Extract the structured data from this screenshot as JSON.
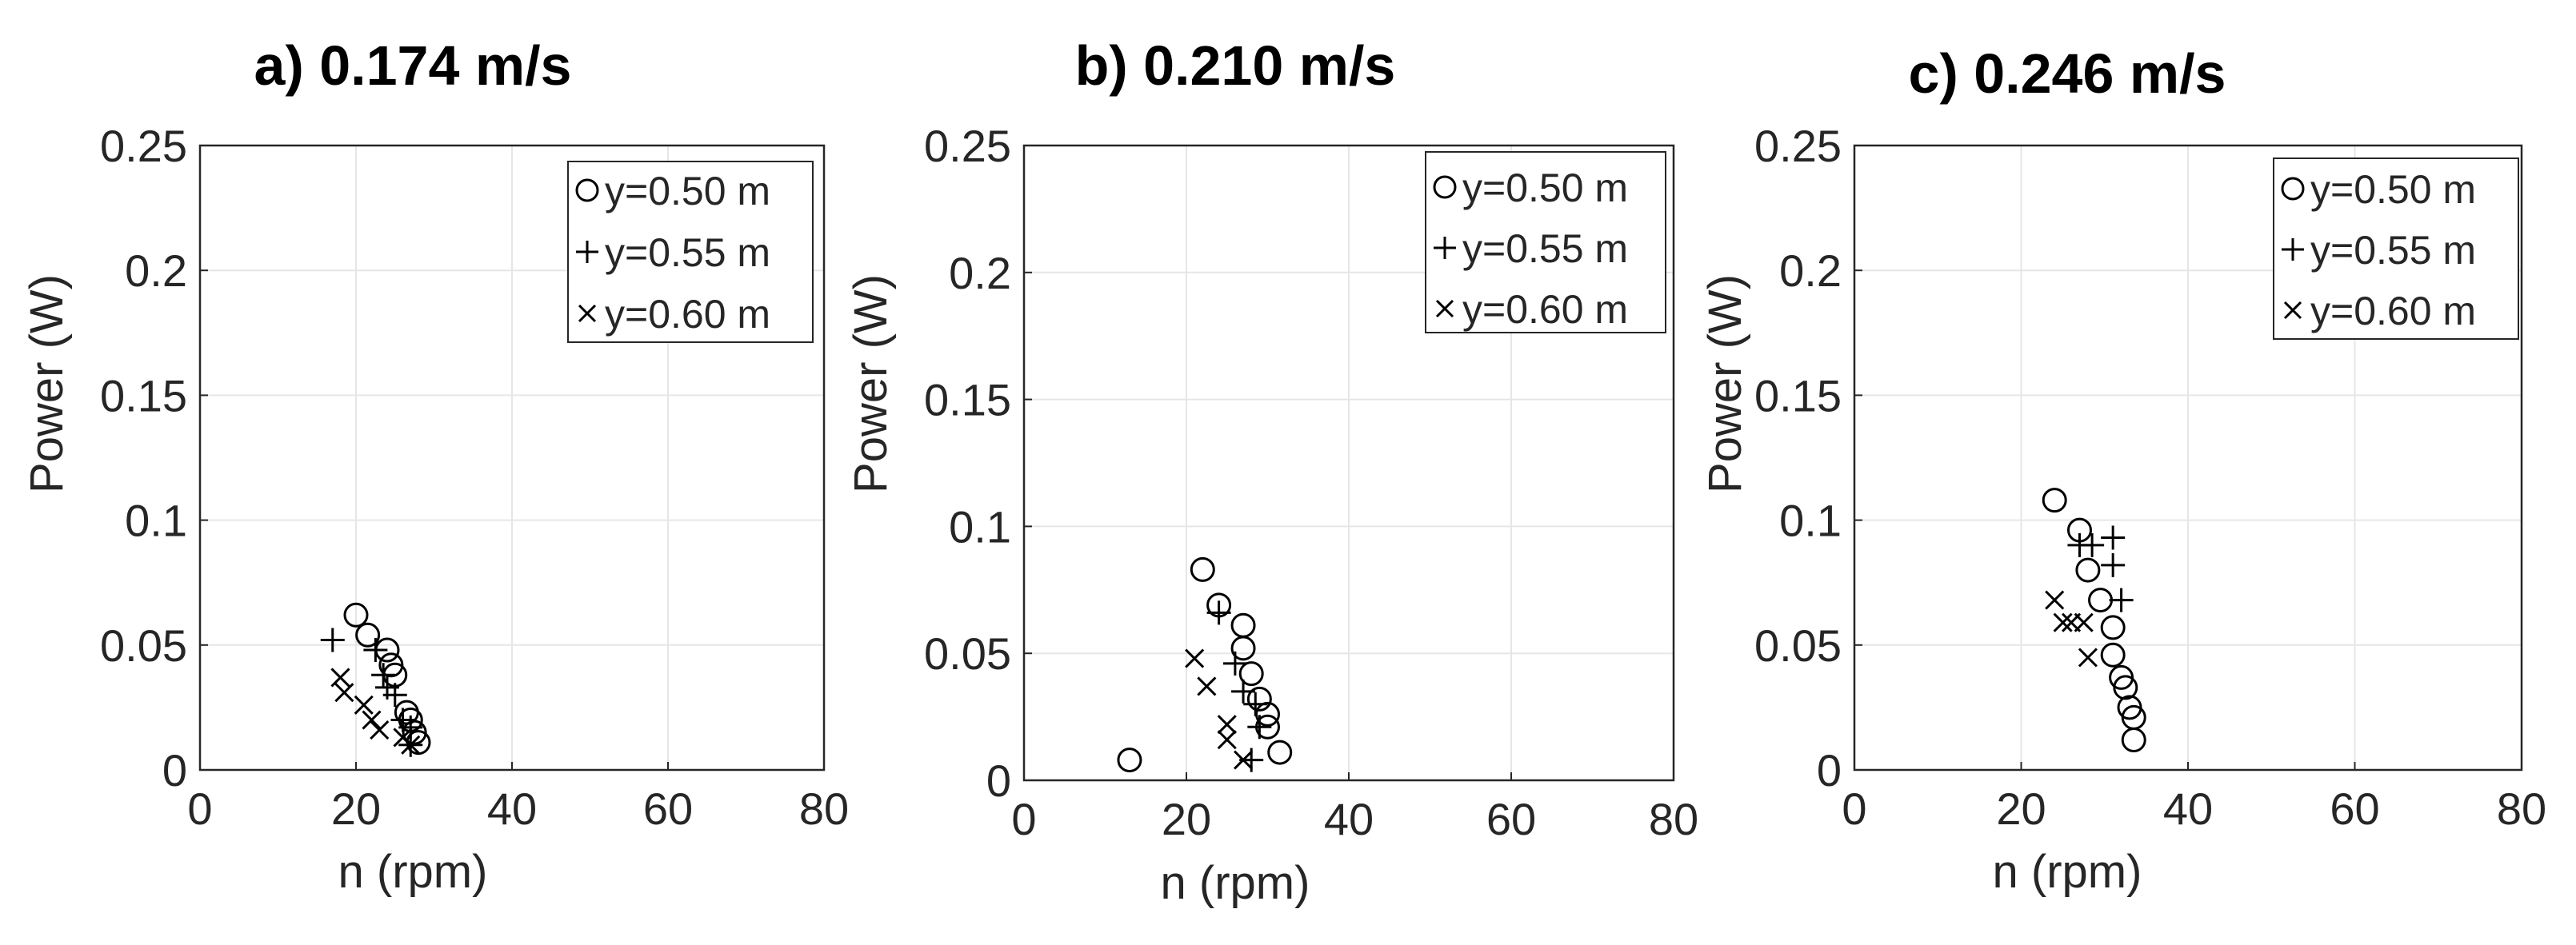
{
  "chart_data": [
    {
      "type": "scatter",
      "title": "a) 0.174 m/s",
      "xlabel": "n (rpm)",
      "ylabel": "Power (W)",
      "xlim": [
        0,
        80
      ],
      "ylim": [
        0,
        0.25
      ],
      "xticks": [
        0,
        20,
        40,
        60,
        80
      ],
      "yticks": [
        0,
        0.05,
        0.1,
        0.15,
        0.2,
        0.25
      ],
      "ytick_labels": [
        "0",
        "0.05",
        "0.1",
        "0.15",
        "0.2",
        "0.25"
      ],
      "grid": true,
      "legend_position": "top-right",
      "series": [
        {
          "name": "y=0.50 m",
          "marker": "circle",
          "x": [
            20,
            21.5,
            24,
            24.5,
            25,
            26.5,
            27,
            27.5,
            28
          ],
          "y": [
            0.062,
            0.054,
            0.048,
            0.042,
            0.038,
            0.023,
            0.02,
            0.015,
            0.011
          ]
        },
        {
          "name": "y=0.55 m",
          "marker": "plus",
          "x": [
            17,
            22.5,
            23.5,
            24,
            25,
            26,
            27,
            27
          ],
          "y": [
            0.052,
            0.048,
            0.038,
            0.033,
            0.03,
            0.02,
            0.017,
            0.01
          ]
        },
        {
          "name": "y=0.60 m",
          "marker": "x",
          "x": [
            18,
            18.5,
            21,
            22,
            23,
            26,
            27
          ],
          "y": [
            0.037,
            0.031,
            0.026,
            0.02,
            0.016,
            0.013,
            0.01
          ]
        }
      ]
    },
    {
      "type": "scatter",
      "title": "b) 0.210 m/s",
      "xlabel": "n (rpm)",
      "ylabel": "Power (W)",
      "xlim": [
        0,
        80
      ],
      "ylim": [
        0,
        0.25
      ],
      "xticks": [
        0,
        20,
        40,
        60,
        80
      ],
      "yticks": [
        0,
        0.05,
        0.1,
        0.15,
        0.2,
        0.25
      ],
      "ytick_labels": [
        "0",
        "0.05",
        "0.1",
        "0.15",
        "0.2",
        "0.25"
      ],
      "grid": true,
      "legend_position": "top-right",
      "series": [
        {
          "name": "y=0.50 m",
          "marker": "circle",
          "x": [
            13,
            22,
            24,
            27,
            27,
            28,
            29,
            30,
            30,
            31.5
          ],
          "y": [
            0.008,
            0.083,
            0.069,
            0.061,
            0.052,
            0.042,
            0.032,
            0.026,
            0.021,
            0.011
          ]
        },
        {
          "name": "y=0.55 m",
          "marker": "plus",
          "x": [
            24,
            26,
            27,
            28.5,
            29,
            28
          ],
          "y": [
            0.066,
            0.046,
            0.035,
            0.03,
            0.021,
            0.008
          ]
        },
        {
          "name": "y=0.60 m",
          "marker": "x",
          "x": [
            21,
            22.5,
            25,
            25,
            27
          ],
          "y": [
            0.048,
            0.037,
            0.022,
            0.016,
            0.008
          ]
        }
      ]
    },
    {
      "type": "scatter",
      "title": "c) 0.246 m/s",
      "xlabel": "n (rpm)",
      "ylabel": "Power (W)",
      "xlim": [
        0,
        80
      ],
      "ylim": [
        0,
        0.25
      ],
      "xticks": [
        0,
        20,
        40,
        60,
        80
      ],
      "yticks": [
        0,
        0.05,
        0.1,
        0.15,
        0.2,
        0.25
      ],
      "ytick_labels": [
        "0",
        "0.05",
        "0.1",
        "0.15",
        "0.2",
        "0.25"
      ],
      "grid": true,
      "legend_position": "top-right",
      "series": [
        {
          "name": "y=0.50 m",
          "marker": "circle",
          "x": [
            24,
            27,
            28,
            29.5,
            31,
            31,
            32,
            32.5,
            33,
            33.5,
            33.5
          ],
          "y": [
            0.108,
            0.096,
            0.08,
            0.068,
            0.057,
            0.046,
            0.037,
            0.033,
            0.025,
            0.021,
            0.012
          ]
        },
        {
          "name": "y=0.55 m",
          "marker": "plus",
          "x": [
            27,
            28.5,
            31,
            31,
            32
          ],
          "y": [
            0.09,
            0.09,
            0.093,
            0.082,
            0.068
          ]
        },
        {
          "name": "y=0.60 m",
          "marker": "x",
          "x": [
            24,
            25,
            26,
            27.5,
            28
          ],
          "y": [
            0.068,
            0.059,
            0.059,
            0.059,
            0.045
          ]
        }
      ]
    }
  ]
}
